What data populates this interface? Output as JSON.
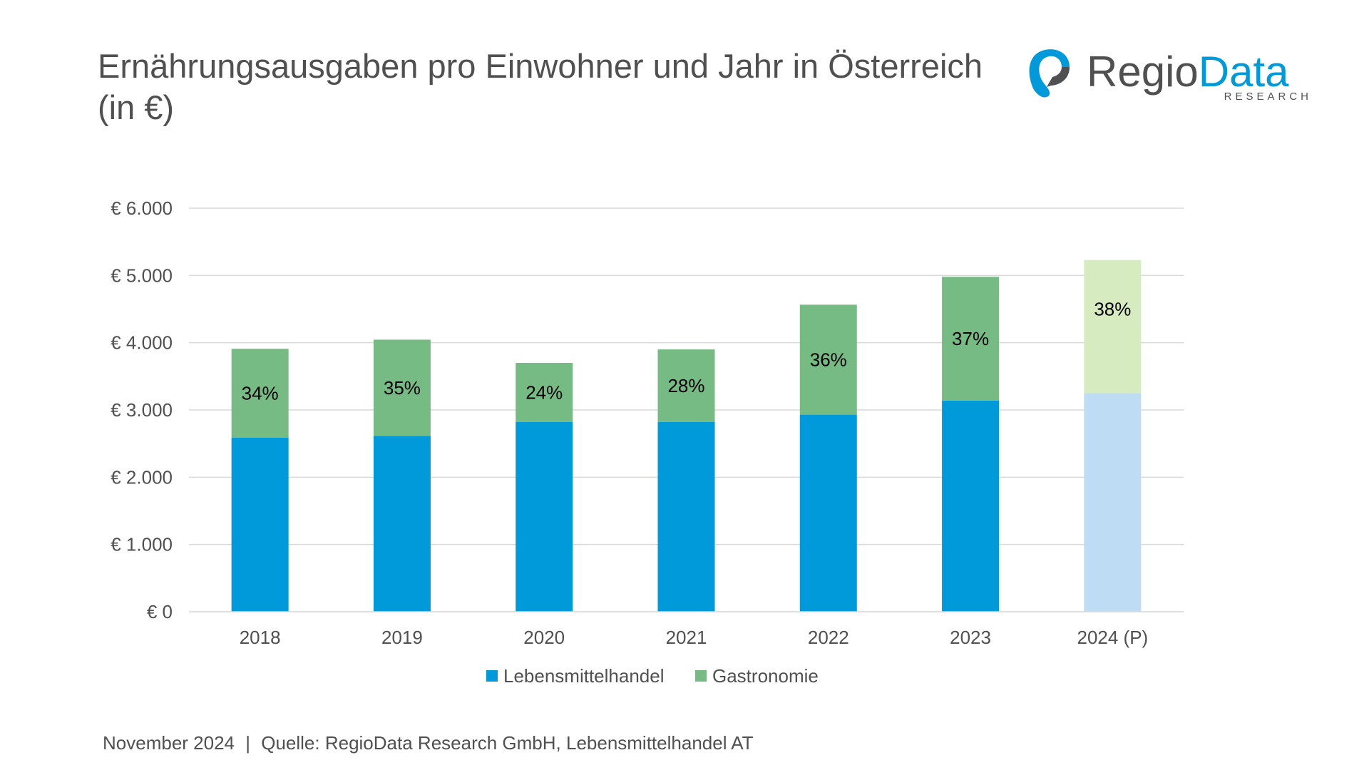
{
  "title": "Ernährungsausgaben pro Einwohner und Jahr in Österreich (in €)",
  "logo": {
    "name_part1": "Regio",
    "name_part2": "Data",
    "subtitle": "RESEARCH"
  },
  "footer": {
    "date": "November 2024",
    "separator": "|",
    "source": "Quelle: RegioData Research GmbH, Lebensmittelhandel AT"
  },
  "colors": {
    "lebensmittelhandel": "#009ADA",
    "gastronomie": "#77BB84",
    "lebensmittelhandel_projection": "#BEDCF4",
    "gastronomie_projection": "#D7EBC0",
    "gridline": "#D9D9D9",
    "text": "#505050",
    "logo_accent": "#009ADA"
  },
  "chart_data": {
    "type": "bar",
    "stacked": true,
    "categories": [
      "2018",
      "2019",
      "2020",
      "2021",
      "2022",
      "2023",
      "2024 (P)"
    ],
    "series": [
      {
        "name": "Lebensmittelhandel",
        "values": [
          2590,
          2615,
          2820,
          2820,
          2930,
          3140,
          3250
        ]
      },
      {
        "name": "Gastronomie",
        "values": [
          1320,
          1430,
          880,
          1080,
          1635,
          1840,
          1980
        ]
      }
    ],
    "data_labels": [
      "34%",
      "35%",
      "24%",
      "28%",
      "36%",
      "37%",
      "38%"
    ],
    "projection_category": "2024 (P)",
    "ylim": [
      0,
      6000
    ],
    "yticks": [
      0,
      1000,
      2000,
      3000,
      4000,
      5000,
      6000
    ],
    "ytick_labels": [
      "€ 0",
      "€ 1.000",
      "€ 2.000",
      "€ 3.000",
      "€ 4.000",
      "€ 5.000",
      "€ 6.000"
    ],
    "grid": true,
    "legend_position": "bottom"
  }
}
